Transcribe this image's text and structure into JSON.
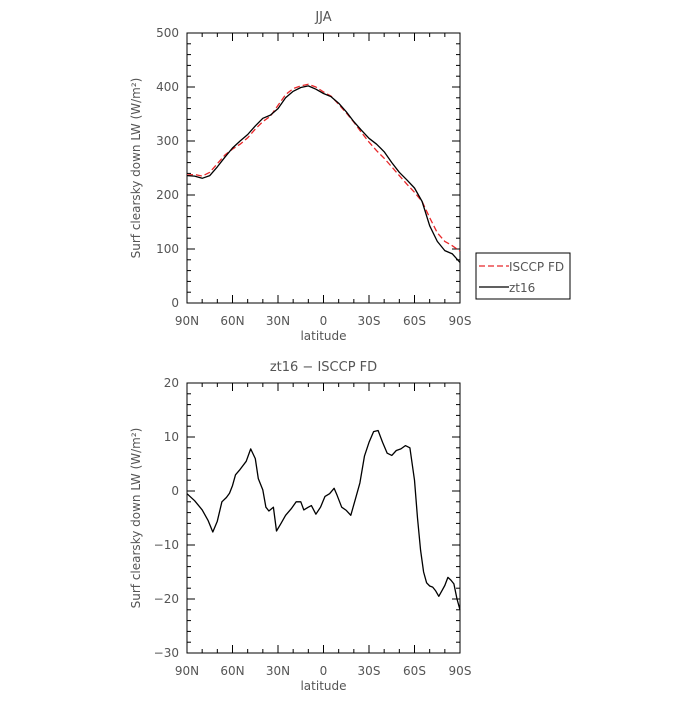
{
  "chart_data": [
    {
      "type": "line",
      "title": "JJA",
      "xlabel": "latitude",
      "ylabel": "Surf clearsky down LW (W/m²)",
      "xlim": [
        90,
        -90
      ],
      "ylim": [
        0,
        500
      ],
      "xticks": [
        {
          "value": 90,
          "label": "90N"
        },
        {
          "value": 60,
          "label": "60N"
        },
        {
          "value": 30,
          "label": "30N"
        },
        {
          "value": 0,
          "label": "0"
        },
        {
          "value": -30,
          "label": "30S"
        },
        {
          "value": -60,
          "label": "60S"
        },
        {
          "value": -90,
          "label": "90S"
        }
      ],
      "yticks": [
        {
          "value": 0,
          "label": "0"
        },
        {
          "value": 100,
          "label": "100"
        },
        {
          "value": 200,
          "label": "200"
        },
        {
          "value": 300,
          "label": "300"
        },
        {
          "value": 400,
          "label": "400"
        },
        {
          "value": 500,
          "label": "500"
        }
      ],
      "legend": {
        "position": "outside-right"
      },
      "series": [
        {
          "name": "ISCCP FD",
          "color": "#e8282a",
          "dash": "dashed",
          "x": [
            90,
            85,
            80,
            75,
            70,
            65,
            60,
            55,
            50,
            45,
            40,
            35,
            30,
            25,
            20,
            15,
            10,
            5,
            0,
            -5,
            -10,
            -15,
            -20,
            -25,
            -30,
            -35,
            -40,
            -45,
            -50,
            -55,
            -60,
            -65,
            -70,
            -75,
            -80,
            -85,
            -90
          ],
          "y": [
            237,
            238,
            235,
            242,
            258,
            274,
            285,
            294,
            306,
            322,
            336,
            346,
            366,
            386,
            397,
            402,
            405,
            400,
            391,
            383,
            368,
            352,
            335,
            316,
            298,
            282,
            268,
            252,
            236,
            220,
            205,
            188,
            158,
            130,
            114,
            106,
            96
          ]
        },
        {
          "name": "zt16",
          "color": "#000000",
          "dash": "solid",
          "x": [
            90,
            85,
            80,
            75,
            70,
            65,
            60,
            55,
            50,
            45,
            40,
            35,
            30,
            25,
            20,
            15,
            10,
            5,
            0,
            -5,
            -10,
            -15,
            -20,
            -25,
            -30,
            -35,
            -40,
            -45,
            -50,
            -55,
            -60,
            -65,
            -70,
            -75,
            -80,
            -85,
            -90
          ],
          "y": [
            236,
            235,
            231,
            236,
            252,
            270,
            287,
            300,
            312,
            328,
            342,
            348,
            360,
            380,
            392,
            399,
            402,
            396,
            388,
            382,
            370,
            354,
            336,
            320,
            305,
            294,
            280,
            260,
            242,
            228,
            213,
            188,
            143,
            114,
            97,
            91,
            75
          ]
        }
      ]
    },
    {
      "type": "line",
      "title": "zt16 − ISCCP FD",
      "xlabel": "latitude",
      "ylabel": "Surf clearsky down LW (W/m²)",
      "xlim": [
        90,
        -90
      ],
      "ylim": [
        -30,
        20
      ],
      "xticks": [
        {
          "value": 90,
          "label": "90N"
        },
        {
          "value": 60,
          "label": "60N"
        },
        {
          "value": 30,
          "label": "30N"
        },
        {
          "value": 0,
          "label": "0"
        },
        {
          "value": -30,
          "label": "30S"
        },
        {
          "value": -60,
          "label": "60S"
        },
        {
          "value": -90,
          "label": "90S"
        }
      ],
      "yticks": [
        {
          "value": -30,
          "label": "−30"
        },
        {
          "value": -20,
          "label": "−20"
        },
        {
          "value": -10,
          "label": "−10"
        },
        {
          "value": 0,
          "label": "0"
        },
        {
          "value": 10,
          "label": "10"
        },
        {
          "value": 20,
          "label": "20"
        }
      ],
      "series": [
        {
          "color": "#000000",
          "dash": "solid",
          "x": [
            90,
            85,
            80,
            76,
            73,
            70,
            67,
            64,
            62,
            60,
            58,
            55,
            51,
            48,
            45,
            43,
            40,
            38,
            36,
            33,
            31,
            28,
            25,
            21,
            18,
            15,
            13,
            10,
            8,
            5,
            2,
            -1,
            -4,
            -7,
            -9,
            -12,
            -15,
            -18,
            -21,
            -24,
            -27,
            -30,
            -33,
            -36,
            -39,
            -42,
            -45,
            -48,
            -51,
            -54,
            -57,
            -60,
            -62,
            -64,
            -66,
            -68,
            -70,
            -72,
            -74,
            -76,
            -78,
            -80,
            -82,
            -84,
            -86,
            -88,
            -90
          ],
          "y": [
            -0.5,
            -1.8,
            -3.5,
            -5.5,
            -7.6,
            -5.6,
            -2.0,
            -1.2,
            -0.4,
            1.0,
            3.0,
            4.0,
            5.5,
            7.8,
            6.0,
            2.3,
            0.2,
            -3.0,
            -3.7,
            -3.0,
            -7.4,
            -6.0,
            -4.5,
            -3.2,
            -2.0,
            -2.0,
            -3.5,
            -3.0,
            -2.7,
            -4.3,
            -3.0,
            -1.0,
            -0.5,
            0.5,
            -0.8,
            -3.0,
            -3.6,
            -4.5,
            -1.5,
            1.5,
            6.5,
            9.0,
            11.0,
            11.2,
            9.0,
            7.0,
            6.6,
            7.5,
            7.8,
            8.4,
            8.0,
            2.0,
            -5.0,
            -11.0,
            -15.0,
            -17.0,
            -17.6,
            -17.8,
            -18.5,
            -19.5,
            -18.5,
            -17.5,
            -16.0,
            -16.5,
            -17.2,
            -20.0,
            -22.0
          ]
        }
      ]
    }
  ]
}
